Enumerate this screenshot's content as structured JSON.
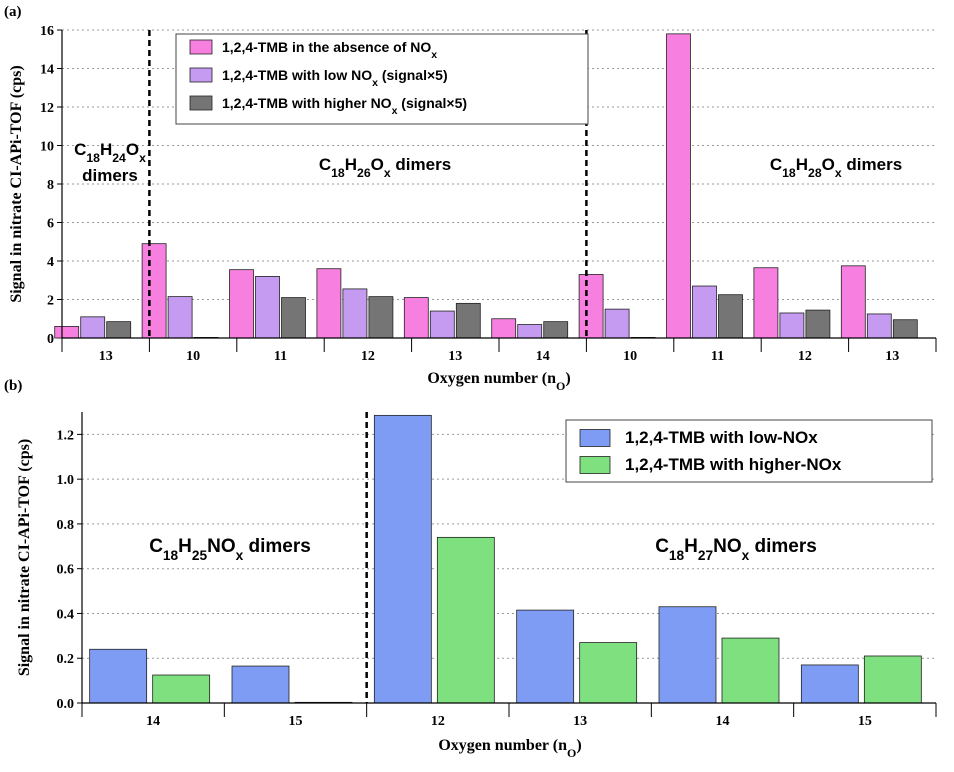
{
  "chart_data": [
    {
      "panel_label": "(a)",
      "type": "bar",
      "ylabel": "Signal in nitrate  CI-APi-TOF (cps)",
      "xlabel": "Oxygen number (n",
      "xlabel_sub": "O",
      "ylim": [
        0,
        16
      ],
      "yticks": [
        "0",
        "2",
        "4",
        "6",
        "8",
        "10",
        "12",
        "14",
        "16"
      ],
      "grid": "horizontal dotted",
      "legend_placement": "top-center",
      "categories": [
        "13",
        "10",
        "11",
        "12",
        "13",
        "14",
        "10",
        "11",
        "12",
        "13"
      ],
      "series": [
        {
          "name": "1,2,4-TMB in the absence of NO",
          "name_sub": "x",
          "name_tail": "",
          "color": "#f77fe0",
          "values": [
            0.6,
            4.9,
            3.55,
            3.6,
            2.1,
            1.0,
            3.3,
            15.8,
            3.65,
            3.75
          ]
        },
        {
          "name": "1,2,4-TMB with low NO",
          "name_sub": "x",
          "name_tail": " (signal×5)",
          "color": "#c59af1",
          "values": [
            1.1,
            2.15,
            3.2,
            2.55,
            1.4,
            0.7,
            1.5,
            2.7,
            1.3,
            1.25
          ]
        },
        {
          "name": "1,2,4-TMB with higher NO",
          "name_sub": "x",
          "name_tail": " (signal×5)",
          "color": "#757575",
          "values": [
            0.85,
            0.03,
            2.1,
            2.15,
            1.8,
            0.85,
            0.03,
            2.25,
            1.45,
            0.95
          ]
        }
      ],
      "groups": [
        {
          "label_lines": [
            [
              {
                "t": "C"
              },
              {
                "t": "18",
                "sub": true
              },
              {
                "t": "H"
              },
              {
                "t": "24",
                "sub": true
              },
              {
                "t": "O"
              },
              {
                "t": "x",
                "sub": true
              }
            ],
            [
              {
                "t": "dimers"
              }
            ]
          ]
        },
        {
          "label_lines": [
            [
              {
                "t": "C"
              },
              {
                "t": "18",
                "sub": true
              },
              {
                "t": "H"
              },
              {
                "t": "26",
                "sub": true
              },
              {
                "t": "O"
              },
              {
                "t": "x",
                "sub": true
              },
              {
                "t": " dimers"
              }
            ]
          ]
        },
        {
          "label_lines": [
            [
              {
                "t": "C"
              },
              {
                "t": "18",
                "sub": true
              },
              {
                "t": "H"
              },
              {
                "t": "28",
                "sub": true
              },
              {
                "t": "O"
              },
              {
                "t": "x",
                "sub": true
              },
              {
                "t": " dimers"
              }
            ]
          ]
        }
      ]
    },
    {
      "panel_label": "(b)",
      "type": "bar",
      "ylabel": "Signal in nitrate  CI-APi-TOF (cps)",
      "xlabel": "Oxygen number (n",
      "xlabel_sub": "O",
      "ylim": [
        0,
        1.3
      ],
      "yticks": [
        "0.0",
        "0.2",
        "0.4",
        "0.6",
        "0.8",
        "1.0",
        "1.2"
      ],
      "grid": "horizontal dotted",
      "legend_placement": "top-right",
      "categories": [
        "14",
        "15",
        "12",
        "13",
        "14",
        "15"
      ],
      "series": [
        {
          "name": "1,2,4-TMB with low-NOx",
          "color": "#7f9cf5",
          "values": [
            0.24,
            0.165,
            1.285,
            0.415,
            0.43,
            0.17
          ]
        },
        {
          "name": "1,2,4-TMB with higher-NOx",
          "color": "#7fe07f",
          "values": [
            0.125,
            0.003,
            0.74,
            0.27,
            0.29,
            0.21
          ]
        }
      ],
      "groups": [
        {
          "label_lines": [
            [
              {
                "t": "C"
              },
              {
                "t": "18",
                "sub": true
              },
              {
                "t": "H"
              },
              {
                "t": "25",
                "sub": true
              },
              {
                "t": "NO"
              },
              {
                "t": "x",
                "sub": true
              },
              {
                "t": " dimers"
              }
            ]
          ]
        },
        {
          "label_lines": [
            [
              {
                "t": "C"
              },
              {
                "t": "18",
                "sub": true
              },
              {
                "t": "H"
              },
              {
                "t": "27",
                "sub": true
              },
              {
                "t": "NO"
              },
              {
                "t": "x",
                "sub": true
              },
              {
                "t": " dimers"
              }
            ]
          ]
        }
      ]
    }
  ]
}
